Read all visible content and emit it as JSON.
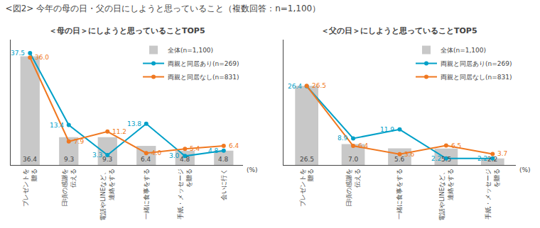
{
  "title": "<図2> 今年の母の日・父の日にしようと思っていること（複数回答：n=1,100）",
  "chart_data": [
    {
      "type": "bar",
      "title": "＜母の日＞にしようと思っていることTOP5",
      "categories": [
        "プレゼントを\n贈る",
        "日頃の感謝を\n伝える",
        "電話やLINEなど、\n連絡をする",
        "一緒に食事をする",
        "手紙・メッセージ\nを贈る",
        "会いに行く"
      ],
      "ylabel": "(%)",
      "series": [
        {
          "name": "全体(n=1,100)",
          "type": "bar",
          "color": "#c8c8c8",
          "values": [
            36.4,
            9.3,
            9.3,
            6.4,
            4.8,
            4.8
          ],
          "value_labels": [
            "36.4",
            "9.3",
            "9.3",
            "6.4",
            "4.8",
            "4.8"
          ]
        },
        {
          "name": "両親と同居あり(n=269)",
          "type": "line",
          "color": "#00a0c8",
          "marker": "circle",
          "values": [
            37.5,
            13.4,
            3.3,
            13.8,
            3.0,
            4.8
          ],
          "value_labels": [
            "37.5",
            "13.4",
            "3.3",
            "13.8",
            "3.0",
            "4.8"
          ]
        },
        {
          "name": "両親と同居なし(n=831)",
          "type": "line",
          "color": "#f07820",
          "marker": "circle",
          "values": [
            36.0,
            7.9,
            11.2,
            4.0,
            5.4,
            6.4
          ],
          "value_labels": [
            "36.0",
            "7.9",
            "11.2",
            "4.0",
            "5.4",
            "6.4"
          ]
        }
      ],
      "ylim": [
        0,
        42
      ],
      "grid": false,
      "legend": "upper right",
      "data_labels": true,
      "tick_labels": "x"
    },
    {
      "type": "bar",
      "title": "＜父の日＞にしようと思っていることTOP5",
      "categories": [
        "プレゼントを\n贈る",
        "日頃の感謝を\n伝える",
        "一緒に食事をする",
        "電話やLINEなど、\n連絡をする",
        "手紙・メッセージ\nを贈る"
      ],
      "ylabel": "(%)",
      "series": [
        {
          "name": "全体(n=1,100)",
          "type": "bar",
          "color": "#c8c8c8",
          "values": [
            26.5,
            7.0,
            5.6,
            5.5,
            2.2
          ],
          "value_labels": [
            "26.5",
            "7.0",
            "5.6",
            "5.5",
            "2.2"
          ]
        },
        {
          "name": "両親と同居あり(n=269)",
          "type": "line",
          "color": "#00a0c8",
          "marker": "circle",
          "values": [
            26.4,
            8.9,
            11.9,
            2.2,
            2.2
          ],
          "value_labels": [
            "26.4",
            "8.9",
            "11.9",
            "2.2",
            "2.2"
          ]
        },
        {
          "name": "両親と同居なし(n=831)",
          "type": "line",
          "color": "#f07820",
          "marker": "circle",
          "values": [
            26.5,
            6.4,
            3.6,
            6.5,
            3.7
          ],
          "value_labels": [
            "26.5",
            "6.4",
            "3.6",
            "6.5",
            "3.7"
          ]
        }
      ],
      "ylim": [
        0,
        42
      ],
      "grid": false,
      "legend": "upper right",
      "data_labels": true,
      "tick_labels": "x"
    }
  ]
}
